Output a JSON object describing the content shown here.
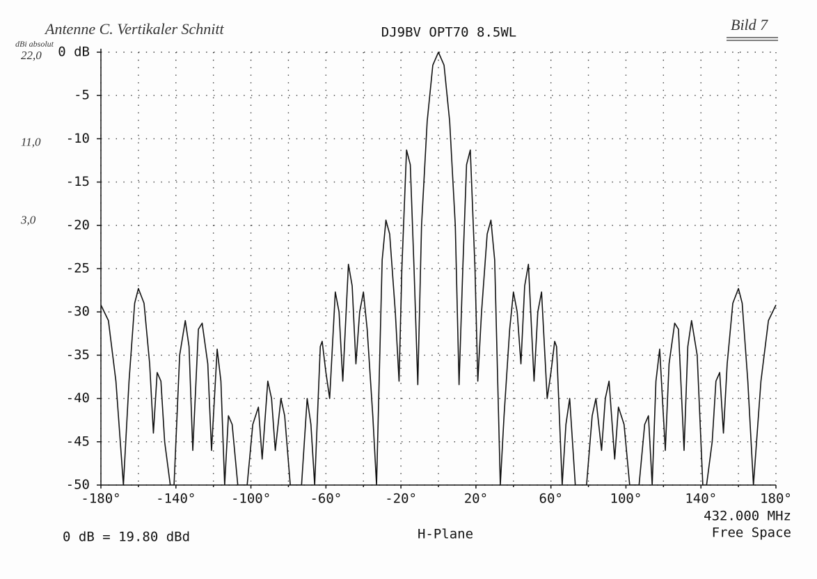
{
  "chart_data": {
    "type": "line",
    "title": "DJ9BV OPT70 8.5WL",
    "subtitle": "H-Plane",
    "annotations": [
      "0 dB = 19.80 dBd",
      "432.000 MHz",
      "Free Space"
    ],
    "handwritten": {
      "caption": "Antenne C. Vertikaler Schnitt",
      "figure": "Bild 7",
      "unit": "dBi absolut",
      "marks": [
        {
          "value": 0,
          "label": "22,0"
        },
        {
          "value": -10,
          "label": "11,0"
        },
        {
          "value": -19,
          "label": "3,0"
        }
      ]
    },
    "x": [
      -180,
      -176,
      -172,
      -168,
      -165,
      -162,
      -160,
      -157,
      -154,
      -152,
      -150,
      -148,
      -146,
      -143,
      -141,
      -138,
      -135,
      -133,
      -131,
      -128,
      -126,
      -123,
      -121,
      -118,
      -116,
      -114,
      -112,
      -110,
      -107,
      -104,
      -102,
      -99,
      -96,
      -94,
      -91,
      -89,
      -87,
      -84,
      -82,
      -79,
      -77,
      -73,
      -70,
      -68,
      -66,
      -63,
      -62,
      -60,
      -58,
      -55,
      -53,
      -51,
      -48,
      -46,
      -44,
      -42,
      -40,
      -38,
      -35,
      -33,
      -30,
      -28,
      -26,
      -23,
      -21,
      -19.5,
      -17,
      -15,
      -13,
      -11,
      -9,
      -6,
      -3,
      0,
      3,
      6,
      9,
      11,
      13,
      15,
      17,
      19.5,
      21,
      23,
      26,
      28,
      30,
      33,
      35,
      38,
      40,
      42,
      44,
      46,
      48,
      51,
      53,
      55,
      58,
      60,
      62,
      63,
      66,
      68,
      70,
      73,
      77,
      79,
      82,
      84,
      87,
      89,
      91,
      94,
      96,
      99,
      102,
      104,
      107,
      110,
      112,
      114,
      116,
      118,
      121,
      123,
      126,
      128,
      131,
      133,
      135,
      138,
      141,
      143,
      146,
      148,
      150,
      152,
      154,
      157,
      160,
      162,
      165,
      168,
      172,
      176,
      180
    ],
    "series": [
      {
        "name": "H-Plane pattern",
        "color": "#111111",
        "values": [
          -29.2,
          -31,
          -38,
          -50,
          -38,
          -29,
          -27.3,
          -29,
          -36,
          -44,
          -37,
          -38,
          -45,
          -50,
          -50,
          -35,
          -31,
          -34,
          -46,
          -32,
          -31.3,
          -36,
          -46,
          -34.3,
          -38,
          -50,
          -42,
          -43,
          -50,
          -50,
          -50,
          -43,
          -41,
          -47,
          -38,
          -40,
          -46,
          -40,
          -42,
          -50,
          -50,
          -50,
          -40,
          -43,
          -50,
          -34,
          -33.4,
          -37,
          -40,
          -27.7,
          -30,
          -38,
          -24.5,
          -27,
          -36,
          -30,
          -27.7,
          -32,
          -42,
          -50,
          -24,
          -19.4,
          -21,
          -30,
          -38,
          -25,
          -11.3,
          -13,
          -25,
          -38.4,
          -20,
          -8,
          -1.5,
          0,
          -1.5,
          -8,
          -20,
          -38.4,
          -25,
          -13,
          -11.3,
          -25,
          -38,
          -30,
          -21,
          -19.4,
          -24,
          -50,
          -42,
          -32,
          -27.7,
          -30,
          -36,
          -27,
          -24.5,
          -38,
          -30,
          -27.7,
          -40,
          -37,
          -33.4,
          -34,
          -50,
          -43,
          -40,
          -50,
          -50,
          -50,
          -42,
          -40,
          -46,
          -40,
          -38,
          -47,
          -41,
          -43,
          -50,
          -50,
          -50,
          -43,
          -42,
          -50,
          -38,
          -34.3,
          -46,
          -36,
          -31.3,
          -32,
          -46,
          -34,
          -31,
          -35,
          -50,
          -50,
          -45,
          -38,
          -37,
          -44,
          -36,
          -29,
          -27.3,
          -29,
          -38,
          -50,
          -38,
          -31,
          -29.2
        ]
      }
    ],
    "xlim": [
      -180,
      180
    ],
    "ylim": [
      -50,
      0
    ],
    "xticks": [
      {
        "value": -180,
        "label": "-180°"
      },
      {
        "value": -140,
        "label": "-140°"
      },
      {
        "value": -100,
        "label": "-100°"
      },
      {
        "value": -60,
        "label": "-60°"
      },
      {
        "value": -20,
        "label": "-20°"
      },
      {
        "value": 20,
        "label": "20°"
      },
      {
        "value": 60,
        "label": "60°"
      },
      {
        "value": 100,
        "label": "100°"
      },
      {
        "value": 140,
        "label": "140°"
      },
      {
        "value": 180,
        "label": "180°"
      }
    ],
    "xgrid": [
      -160,
      -120,
      -80,
      -40,
      0,
      40,
      80,
      120,
      160
    ],
    "yticks": [
      {
        "value": 0,
        "label": "0 dB"
      },
      -5,
      -10,
      -15,
      -20,
      -25,
      -30,
      -35,
      -40,
      -45,
      -50
    ],
    "grid": true
  }
}
